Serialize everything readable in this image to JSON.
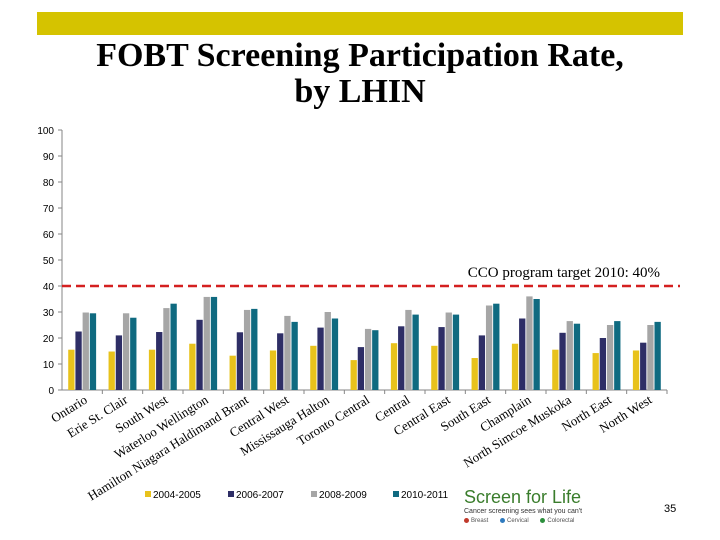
{
  "slide": {
    "title_line1": "FOBT Screening Participation Rate,",
    "title_line2": "by LHIN",
    "page_number": "35",
    "accent_color": "#d5c300"
  },
  "logo": {
    "name": "Screen for Life",
    "tagline": "Cancer screening sees what you can't",
    "programs": [
      "Breast",
      "Cervical",
      "Colorectal"
    ]
  },
  "chart_data": {
    "type": "bar",
    "categories": [
      "Ontario",
      "Erie St. Clair",
      "South West",
      "Waterloo Wellington",
      "Hamilton Niagara Haldimand Brant",
      "Central West",
      "Mississauga Halton",
      "Toronto Central",
      "Central",
      "Central East",
      "South East",
      "Champlain",
      "North Simcoe Muskoka",
      "North East",
      "North West"
    ],
    "series": [
      {
        "name": "2004-2005",
        "color": "#e8c21c",
        "values": [
          15.5,
          14.8,
          15.5,
          17.8,
          13.2,
          15.2,
          17.0,
          11.5,
          18.0,
          17.0,
          12.3,
          17.8,
          15.5,
          14.2,
          15.2
        ]
      },
      {
        "name": "2006-2007",
        "color": "#2e2e66",
        "values": [
          22.5,
          21.0,
          22.3,
          27.0,
          22.2,
          21.8,
          24.0,
          16.5,
          24.5,
          24.2,
          21.0,
          27.5,
          22.0,
          20.0,
          18.2
        ]
      },
      {
        "name": "2008-2009",
        "color": "#a6a6a6",
        "values": [
          29.8,
          29.5,
          31.5,
          35.8,
          30.8,
          28.5,
          30.0,
          23.5,
          30.8,
          29.8,
          32.5,
          36.0,
          26.5,
          25.0,
          25.0
        ]
      },
      {
        "name": "2010-2011",
        "color": "#0f6a80",
        "values": [
          29.5,
          27.8,
          33.2,
          35.8,
          31.2,
          26.2,
          27.5,
          23.0,
          29.0,
          29.0,
          33.2,
          35.0,
          25.5,
          26.5,
          26.2
        ]
      }
    ],
    "yticks": [
      0,
      10,
      20,
      30,
      40,
      50,
      60,
      70,
      80,
      90,
      100
    ],
    "ylim": [
      0,
      100
    ],
    "grid": false,
    "legend_position": "bottom",
    "target": {
      "value": 40,
      "label": "CCO program target 2010: 40%",
      "color": "#d42020"
    }
  }
}
